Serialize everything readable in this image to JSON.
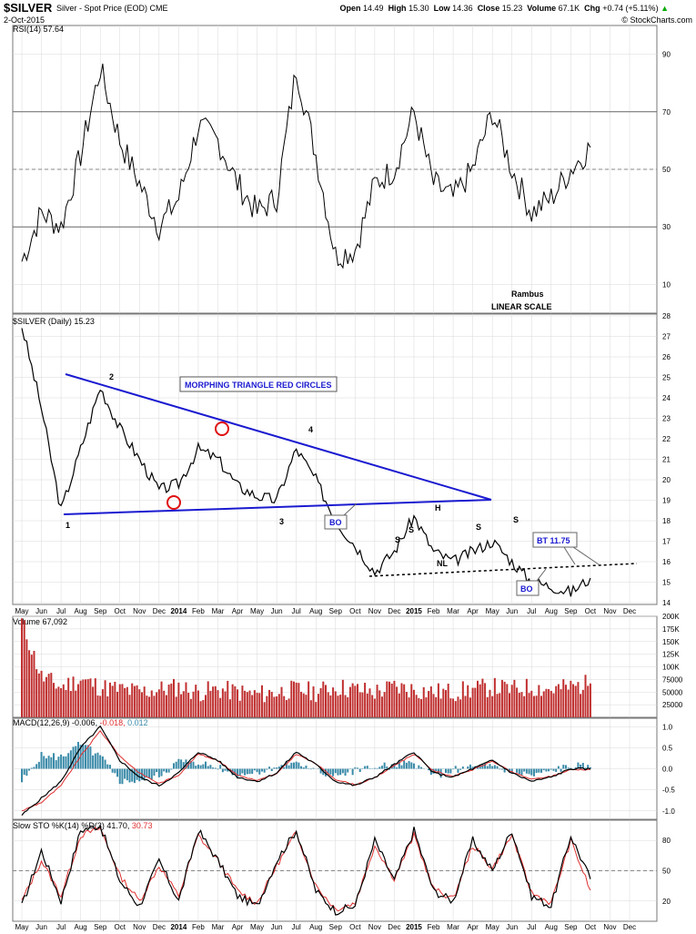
{
  "header": {
    "symbol": "$SILVER",
    "name": "Silver - Spot Price (EOD) CME",
    "date": "2-Oct-2015",
    "open_label": "Open",
    "open": "14.49",
    "high_label": "High",
    "high": "15.30",
    "low_label": "Low",
    "low": "14.36",
    "close_label": "Close",
    "close": "15.23",
    "volume_label": "Volume",
    "volume": "67.1K",
    "chg_label": "Chg",
    "chg": "+0.74 (+5.11%)",
    "chg_arrow": "▲",
    "watermark": "© StockCharts.com"
  },
  "colors": {
    "frame": "#000000",
    "grid": "#d8d8d8",
    "price": "#000000",
    "trend": "#1a1ad0",
    "circle": "#e01010",
    "rsi_ob": "#4f7f4f",
    "rsi_os": "#8a5050",
    "vol": "#c03030",
    "macd_hist": "#3a8aa8",
    "signal": "#e03030",
    "label_box": "#1a1ad0"
  },
  "panels": {
    "rsi": {
      "title": "RSI(14) 57.64",
      "ticks": [
        "90",
        "70",
        "50",
        "30",
        "10"
      ],
      "annot1": "Rambus",
      "annot2": "LINEAR SCALE"
    },
    "price": {
      "title": "$SILVER (Daily) 15.23",
      "ticks": [
        "28",
        "27",
        "26",
        "25",
        "24",
        "23",
        "22",
        "21",
        "20",
        "19",
        "18",
        "17",
        "16",
        "15",
        "14"
      ]
    },
    "volume": {
      "title": "Volume 67,092",
      "ticks": [
        "200K",
        "175K",
        "150K",
        "125K",
        "100K",
        "75000",
        "50000",
        "25000"
      ]
    },
    "macd": {
      "title_pre": "MACD(12,26,9)",
      "v1": "-0.006,",
      "v2": "-0.018,",
      "v3": "0.012",
      "ticks": [
        "1.0",
        "0.5",
        "0.0",
        "-0.5",
        "-1.0"
      ]
    },
    "sto": {
      "title_pre": "Slow STO %K(14) %D(3)",
      "v1": "41.70,",
      "v2": "30.73",
      "ticks": [
        "80",
        "50",
        "20"
      ]
    }
  },
  "x_axis": [
    "May",
    "Jun",
    "Jul",
    "Aug",
    "Sep",
    "Oct",
    "Nov",
    "Dec",
    "2014",
    "Feb",
    "Mar",
    "Apr",
    "May",
    "Jun",
    "Jul",
    "Aug",
    "Sep",
    "Oct",
    "Nov",
    "Dec",
    "2015",
    "Feb",
    "Mar",
    "Apr",
    "May",
    "Jun",
    "Jul",
    "Aug",
    "Sep",
    "Oct",
    "Nov",
    "Dec"
  ],
  "annotations": {
    "triangle_label": "MORPHING TRIANGLE RED CIRCLES",
    "p1": "1",
    "p2": "2",
    "p3": "3",
    "p4": "4",
    "bo1": "BO",
    "bo2": "BO",
    "bt": "BT 11.75",
    "s1": "S",
    "s2": "S",
    "h": "H",
    "s3": "S",
    "s4": "S",
    "nl": "NL"
  },
  "chart_data": {
    "type": "line",
    "title": "$SILVER (Daily) 15.23",
    "x_label": "",
    "y_label": "",
    "ylim": [
      14,
      28
    ],
    "x_period": [
      "2013-05",
      "2015-10"
    ],
    "price_series": {
      "name": "$SILVER",
      "x": [
        "May 2013",
        "Jun 2013",
        "Jul 2013",
        "Aug 2013",
        "Sep 2013",
        "Oct 2013",
        "Nov 2013",
        "Dec 2013",
        "Jan 2014",
        "Feb 2014",
        "Mar 2014",
        "Apr 2014",
        "May 2014",
        "Jun 2014",
        "Jul 2014",
        "Aug 2014",
        "Sep 2014",
        "Oct 2014",
        "Nov 2014",
        "Dec 2014",
        "Jan 2015",
        "Feb 2015",
        "Mar 2015",
        "Apr 2015",
        "May 2015",
        "Jun 2015",
        "Jul 2015",
        "Aug 2015",
        "Sep 2015",
        "Oct 2015"
      ],
      "values": [
        27.5,
        23.5,
        18.5,
        21.5,
        24.5,
        22.5,
        21.0,
        19.5,
        19.8,
        21.5,
        21.0,
        19.7,
        19.2,
        19.0,
        21.5,
        20.0,
        18.0,
        16.8,
        15.5,
        16.5,
        18.2,
        16.5,
        16.0,
        16.5,
        17.0,
        16.0,
        15.0,
        14.8,
        14.5,
        15.2
      ]
    },
    "rsi_series": {
      "name": "RSI(14)",
      "ylim": [
        0,
        100
      ],
      "values": [
        18,
        35,
        30,
        55,
        85,
        60,
        45,
        30,
        40,
        65,
        60,
        45,
        35,
        40,
        85,
        55,
        20,
        22,
        45,
        50,
        70,
        45,
        40,
        50,
        70,
        50,
        35,
        40,
        50,
        57.64
      ]
    },
    "volume_series": {
      "name": "Volume",
      "ylim": [
        0,
        200000
      ],
      "values": [
        190000,
        80000,
        60000,
        75000,
        60000,
        55000,
        50000,
        55000,
        60000,
        50000,
        55000,
        50000,
        45000,
        50000,
        55000,
        50000,
        60000,
        55000,
        50000,
        60000,
        55000,
        50000,
        50000,
        55000,
        60000,
        55000,
        60000,
        55000,
        60000,
        67092
      ]
    },
    "macd_series": {
      "name": "MACD(12,26,9)",
      "ylim": [
        -1.2,
        1.2
      ],
      "values": [
        -1.1,
        -0.7,
        -0.3,
        0.5,
        1.0,
        0.2,
        -0.2,
        -0.4,
        -0.1,
        0.4,
        0.2,
        -0.2,
        -0.3,
        -0.1,
        0.4,
        0.1,
        -0.3,
        -0.4,
        -0.2,
        0.1,
        0.4,
        -0.1,
        -0.2,
        0.0,
        0.2,
        -0.1,
        -0.3,
        -0.2,
        0.0,
        -0.006
      ],
      "signal_values": [
        -1.0,
        -0.8,
        -0.4,
        0.3,
        0.9,
        0.3,
        -0.1,
        -0.35,
        -0.15,
        0.35,
        0.2,
        -0.15,
        -0.28,
        -0.12,
        0.35,
        0.12,
        -0.25,
        -0.38,
        -0.22,
        0.08,
        0.35,
        -0.05,
        -0.18,
        -0.02,
        0.18,
        -0.08,
        -0.25,
        -0.18,
        -0.02,
        -0.018
      ]
    },
    "sto_series": {
      "name": "Slow STO",
      "ylim": [
        0,
        100
      ],
      "k_values": [
        15,
        70,
        20,
        90,
        95,
        40,
        15,
        60,
        20,
        90,
        60,
        25,
        15,
        60,
        90,
        30,
        10,
        15,
        80,
        40,
        90,
        30,
        20,
        80,
        50,
        90,
        25,
        15,
        85,
        41.7
      ],
      "d_values": [
        20,
        60,
        25,
        85,
        92,
        45,
        20,
        55,
        25,
        85,
        60,
        30,
        18,
        55,
        88,
        35,
        12,
        18,
        75,
        42,
        85,
        32,
        22,
        75,
        52,
        85,
        28,
        18,
        80,
        30.73
      ]
    },
    "grid": true,
    "legend": "none"
  }
}
